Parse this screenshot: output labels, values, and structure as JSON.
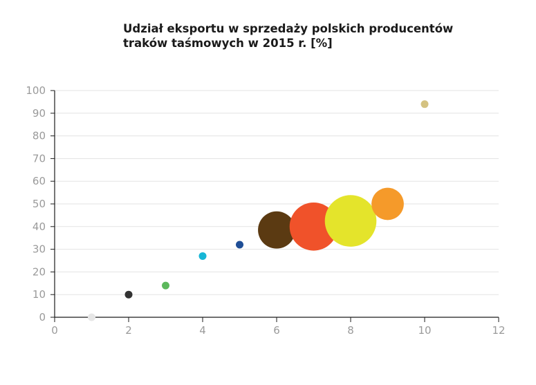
{
  "chart_data": {
    "type": "bubble",
    "title": [
      "Udział eksportu w sprzedaży polskich producentów",
      "traków taśmowych w 2015 r. [%]"
    ],
    "xlabel": "",
    "ylabel": "",
    "xlim": [
      0,
      12
    ],
    "ylim": [
      0,
      100
    ],
    "xticks": [
      0,
      2,
      4,
      6,
      8,
      10,
      12
    ],
    "yticks": [
      0,
      10,
      20,
      30,
      40,
      50,
      60,
      70,
      80,
      90,
      100
    ],
    "grid": "horizontal",
    "points": [
      {
        "x": 1,
        "y": 0,
        "size": 1,
        "color": "#e6e6e6"
      },
      {
        "x": 2,
        "y": 10,
        "size": 1,
        "color": "#333333"
      },
      {
        "x": 3,
        "y": 14,
        "size": 1,
        "color": "#5cb85c"
      },
      {
        "x": 4,
        "y": 27,
        "size": 1,
        "color": "#17b6d6"
      },
      {
        "x": 5,
        "y": 32,
        "size": 1,
        "color": "#1f4e96"
      },
      {
        "x": 6,
        "y": 38.5,
        "size": 24,
        "color": "#5b3a12"
      },
      {
        "x": 7,
        "y": 40,
        "size": 40,
        "color": "#f0522a"
      },
      {
        "x": 8,
        "y": 42.5,
        "size": 46,
        "color": "#e4e42b"
      },
      {
        "x": 9,
        "y": 50,
        "size": 18,
        "color": "#f59a2a"
      },
      {
        "x": 10,
        "y": 94,
        "size": 1,
        "color": "#d4c281"
      }
    ]
  }
}
